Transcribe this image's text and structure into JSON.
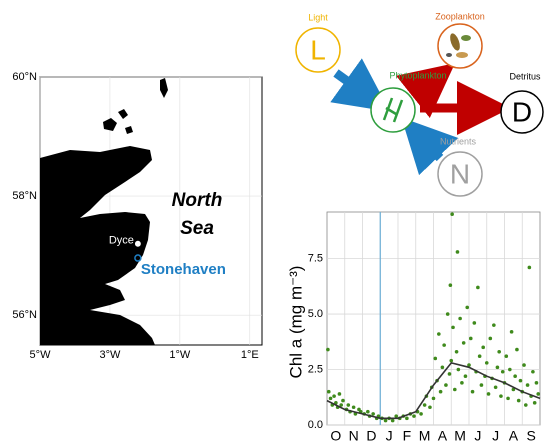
{
  "map": {
    "lat_ticks": [
      {
        "value": 60,
        "label": "60°N"
      },
      {
        "value": 58,
        "label": "58°N"
      },
      {
        "value": 56,
        "label": "56°N"
      }
    ],
    "lon_ticks": [
      {
        "value": -5,
        "label": "5°W"
      },
      {
        "value": -3,
        "label": "3°W"
      },
      {
        "value": -1,
        "label": "1°W"
      },
      {
        "value": 1,
        "label": "1°E"
      }
    ],
    "latlim": [
      55.5,
      60
    ],
    "lonlim": [
      -5,
      1.35
    ],
    "sea_label": [
      "North",
      "Sea"
    ],
    "places": [
      {
        "name": "Dyce",
        "lat": 57.2,
        "lon": -2.2,
        "color": "#ffffff"
      },
      {
        "name": "Stonehaven",
        "lat": 56.96,
        "lon": -2.2,
        "color": "#1f7fc4"
      }
    ]
  },
  "diagram": {
    "nodes": [
      {
        "label": "Light",
        "symbol": "L",
        "color": "#f0b400"
      },
      {
        "label": "Zooplankton",
        "color": "#d9641e"
      },
      {
        "label": "Phytoplankton",
        "color": "#2e9e3e"
      },
      {
        "label": "Detritus",
        "symbol": "D",
        "color": "#000000"
      },
      {
        "label": "Nutrients",
        "symbol": "N",
        "color": "#a0a0a0"
      }
    ]
  },
  "chart_data": {
    "type": "scatter",
    "ylabel": "Chl a (mg m⁻³)",
    "color": "#3f8a1c",
    "x": [
      0.05,
      0.1,
      0.2,
      0.3,
      0.4,
      0.5,
      0.6,
      0.7,
      0.8,
      0.9,
      1.1,
      1.2,
      1.3,
      1.5,
      1.6,
      1.8,
      1.9,
      2.1,
      2.3,
      2.4,
      2.6,
      2.8,
      2.9,
      3.1,
      3.3,
      3.5,
      3.7,
      3.9,
      4.1,
      4.3,
      4.5,
      4.7,
      4.9,
      5.1,
      5.3,
      5.5,
      5.6,
      5.8,
      5.9,
      6.0,
      6.1,
      6.2,
      6.3,
      6.4,
      6.5,
      6.6,
      6.7,
      6.8,
      6.9,
      6.95,
      7.0,
      7.05,
      7.1,
      7.2,
      7.3,
      7.35,
      7.4,
      7.5,
      7.6,
      7.7,
      7.8,
      7.9,
      8.0,
      8.1,
      8.2,
      8.3,
      8.4,
      8.5,
      8.6,
      8.7,
      8.8,
      8.9,
      9.0,
      9.1,
      9.2,
      9.3,
      9.4,
      9.5,
      9.6,
      9.7,
      9.8,
      9.9,
      10.0,
      10.1,
      10.2,
      10.3,
      10.4,
      10.5,
      10.6,
      10.7,
      10.8,
      10.9,
      11.0,
      11.1,
      11.2,
      11.3,
      11.4,
      11.5,
      11.6,
      11.7,
      11.8,
      11.9
    ],
    "values": [
      3.4,
      1.5,
      1.2,
      0.9,
      1.3,
      1.0,
      0.8,
      1.4,
      0.9,
      1.1,
      0.7,
      0.9,
      0.6,
      0.8,
      0.5,
      0.7,
      0.6,
      0.5,
      0.6,
      0.4,
      0.5,
      0.3,
      0.4,
      0.3,
      0.2,
      0.3,
      0.2,
      0.4,
      0.3,
      0.4,
      0.3,
      0.5,
      0.4,
      0.6,
      0.5,
      0.9,
      1.3,
      0.8,
      1.7,
      1.2,
      3.0,
      2.0,
      4.1,
      1.5,
      2.6,
      3.6,
      1.8,
      5.0,
      2.3,
      6.3,
      2.9,
      9.5,
      4.4,
      1.6,
      3.3,
      7.8,
      2.5,
      4.8,
      1.9,
      3.7,
      2.2,
      5.3,
      2.7,
      3.9,
      1.5,
      4.6,
      2.4,
      6.2,
      3.1,
      1.8,
      3.5,
      2.2,
      2.8,
      1.4,
      3.9,
      2.1,
      4.5,
      1.7,
      2.6,
      3.3,
      1.3,
      2.4,
      1.9,
      3.1,
      1.2,
      2.5,
      4.2,
      1.6,
      2.2,
      3.4,
      1.1,
      2.0,
      1.5,
      2.7,
      0.9,
      1.8,
      7.1,
      1.3,
      2.4,
      1.0,
      1.9,
      1.4
    ],
    "trend": {
      "color": "#333333",
      "x": [
        0,
        1,
        2,
        3,
        4,
        5,
        6,
        7,
        8,
        9,
        10,
        11,
        12
      ],
      "values": [
        1.1,
        0.7,
        0.5,
        0.3,
        0.3,
        0.6,
        1.8,
        2.8,
        2.6,
        2.2,
        1.9,
        1.5,
        1.2
      ]
    },
    "vline": 3,
    "vline_color": "#6aaed6",
    "xlim": [
      0,
      12
    ],
    "ylim": [
      0,
      9.6
    ],
    "xticks": [
      {
        "value": 0.5,
        "label": "O"
      },
      {
        "value": 1.5,
        "label": "N"
      },
      {
        "value": 2.5,
        "label": "D"
      },
      {
        "value": 3.5,
        "label": "J"
      },
      {
        "value": 4.5,
        "label": "F"
      },
      {
        "value": 5.5,
        "label": "M"
      },
      {
        "value": 6.5,
        "label": "A"
      },
      {
        "value": 7.5,
        "label": "M"
      },
      {
        "value": 8.5,
        "label": "J"
      },
      {
        "value": 9.5,
        "label": "J"
      },
      {
        "value": 10.5,
        "label": "A"
      },
      {
        "value": 11.5,
        "label": "S"
      }
    ],
    "xgrid": [
      1,
      2,
      3,
      4,
      5,
      6,
      7,
      8,
      9,
      10,
      11
    ],
    "yticks": [
      {
        "value": 0,
        "label": "0.0"
      },
      {
        "value": 2.5,
        "label": "2.5"
      },
      {
        "value": 5,
        "label": "5.0"
      },
      {
        "value": 7.5,
        "label": "7.5"
      }
    ],
    "grid": true
  }
}
